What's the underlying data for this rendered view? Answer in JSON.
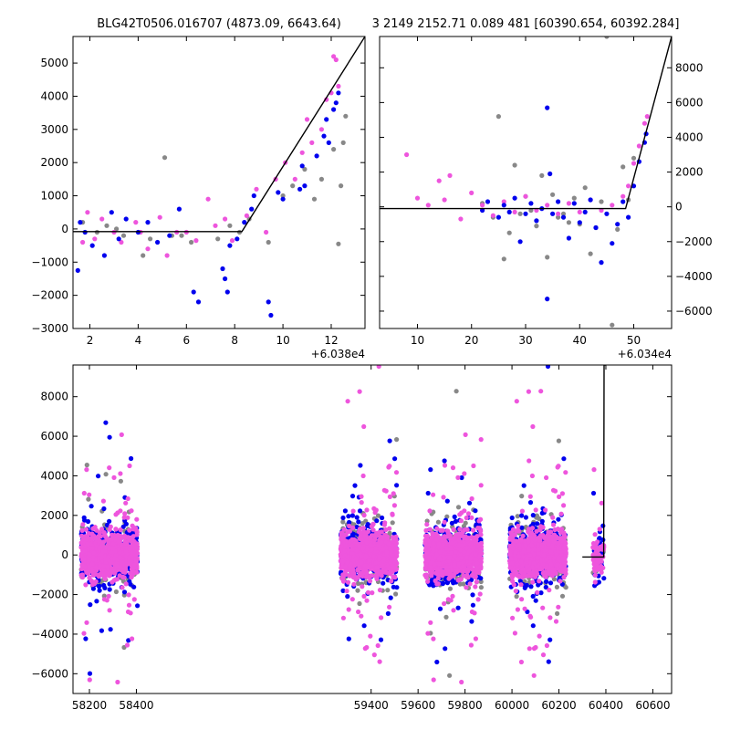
{
  "figure": {
    "title_left": "BLG42T0506.016707 (4873.09, 6643.64)",
    "title_right": "3 2149 2152.71 0.089 481 [60390.654, 60392.284]"
  },
  "colors": {
    "series_a": "#0000ee",
    "series_b": "#ee55dd",
    "series_c": "#888888",
    "model": "#000000"
  },
  "chart_data": [
    {
      "type": "scatter",
      "panel": "top-left",
      "x_offset_label": "+6.038e4",
      "xlim": [
        1.3,
        13.4
      ],
      "ylim": [
        -3000,
        5800
      ],
      "xticks": [
        2,
        4,
        6,
        8,
        10,
        12
      ],
      "yticks": [
        -3000,
        -2000,
        -1000,
        0,
        1000,
        2000,
        3000,
        4000,
        5000
      ],
      "ytick_side": "left",
      "model_line": {
        "x": [
          1.3,
          8.3,
          13.4
        ],
        "y": [
          -80,
          -80,
          5800
        ]
      },
      "series": [
        {
          "color": "#888888",
          "points": [
            [
              1.7,
              200
            ],
            [
              2.3,
              -100
            ],
            [
              2.7,
              100
            ],
            [
              3.1,
              0
            ],
            [
              3.4,
              -200
            ],
            [
              4.2,
              -800
            ],
            [
              4.5,
              -300
            ],
            [
              5.1,
              2150
            ],
            [
              5.4,
              -200
            ],
            [
              5.8,
              -200
            ],
            [
              6.2,
              -400
            ],
            [
              7.3,
              -300
            ],
            [
              7.8,
              100
            ],
            [
              8.2,
              -100
            ],
            [
              8.6,
              300
            ],
            [
              9.4,
              -400
            ],
            [
              10.0,
              1000
            ],
            [
              10.4,
              1300
            ],
            [
              10.9,
              1800
            ],
            [
              11.3,
              900
            ],
            [
              11.6,
              1500
            ],
            [
              12.1,
              2400
            ],
            [
              12.3,
              -450
            ],
            [
              12.4,
              1300
            ],
            [
              12.5,
              2600
            ],
            [
              12.6,
              3400
            ]
          ]
        },
        {
          "color": "#ee55dd",
          "points": [
            [
              1.7,
              -400
            ],
            [
              1.9,
              500
            ],
            [
              2.2,
              -300
            ],
            [
              2.5,
              300
            ],
            [
              3.0,
              -100
            ],
            [
              3.3,
              -400
            ],
            [
              3.9,
              200
            ],
            [
              4.1,
              -100
            ],
            [
              4.4,
              -600
            ],
            [
              4.9,
              350
            ],
            [
              5.2,
              -800
            ],
            [
              5.6,
              -100
            ],
            [
              6.0,
              -100
            ],
            [
              6.4,
              -350
            ],
            [
              6.9,
              900
            ],
            [
              7.2,
              100
            ],
            [
              7.6,
              300
            ],
            [
              7.9,
              -350
            ],
            [
              8.5,
              400
            ],
            [
              8.9,
              1200
            ],
            [
              9.3,
              -100
            ],
            [
              9.7,
              1500
            ],
            [
              10.1,
              2000
            ],
            [
              10.5,
              1500
            ],
            [
              10.8,
              2300
            ],
            [
              11.0,
              3300
            ],
            [
              11.2,
              2600
            ],
            [
              11.6,
              3000
            ],
            [
              11.8,
              3900
            ],
            [
              12.0,
              4100
            ],
            [
              12.1,
              5200
            ],
            [
              12.2,
              5100
            ],
            [
              12.3,
              4300
            ]
          ]
        },
        {
          "color": "#0000ee",
          "points": [
            [
              1.5,
              -1250
            ],
            [
              1.6,
              200
            ],
            [
              1.8,
              -100
            ],
            [
              2.1,
              -500
            ],
            [
              2.6,
              -800
            ],
            [
              2.9,
              500
            ],
            [
              3.2,
              -300
            ],
            [
              3.5,
              300
            ],
            [
              4.0,
              -100
            ],
            [
              4.4,
              200
            ],
            [
              4.8,
              -400
            ],
            [
              5.3,
              -200
            ],
            [
              5.7,
              600
            ],
            [
              6.3,
              -1900
            ],
            [
              6.5,
              -2200
            ],
            [
              7.5,
              -1200
            ],
            [
              7.6,
              -1500
            ],
            [
              7.7,
              -1900
            ],
            [
              7.8,
              -500
            ],
            [
              8.1,
              -300
            ],
            [
              8.4,
              200
            ],
            [
              8.7,
              600
            ],
            [
              8.8,
              1000
            ],
            [
              9.4,
              -2200
            ],
            [
              9.5,
              -2600
            ],
            [
              9.8,
              1100
            ],
            [
              10.0,
              900
            ],
            [
              10.7,
              1200
            ],
            [
              10.8,
              1900
            ],
            [
              10.9,
              1300
            ],
            [
              11.4,
              2200
            ],
            [
              11.7,
              2800
            ],
            [
              11.8,
              3300
            ],
            [
              11.9,
              2600
            ],
            [
              12.1,
              3600
            ],
            [
              12.2,
              3800
            ],
            [
              12.3,
              4100
            ]
          ]
        }
      ]
    },
    {
      "type": "scatter",
      "panel": "top-right",
      "x_offset_label": "+6.034e4",
      "xlim": [
        3,
        57
      ],
      "ylim": [
        -7000,
        9800
      ],
      "xticks": [
        10,
        20,
        30,
        40,
        50
      ],
      "yticks": [
        -6000,
        -4000,
        -2000,
        0,
        2000,
        4000,
        6000,
        8000
      ],
      "ytick_side": "right",
      "model_line": {
        "x": [
          3,
          48.5,
          57
        ],
        "y": [
          -100,
          -100,
          9800
        ]
      },
      "series": [
        {
          "color": "#888888",
          "points": [
            [
              22,
              200
            ],
            [
              24,
              -600
            ],
            [
              25,
              5200
            ],
            [
              26,
              -3000
            ],
            [
              27,
              -1500
            ],
            [
              28,
              2400
            ],
            [
              29,
              -400
            ],
            [
              30,
              600
            ],
            [
              31,
              -200
            ],
            [
              32,
              -1100
            ],
            [
              33,
              1800
            ],
            [
              34,
              -2900
            ],
            [
              35,
              700
            ],
            [
              36,
              -600
            ],
            [
              37,
              -400
            ],
            [
              38,
              -900
            ],
            [
              39,
              500
            ],
            [
              40,
              -1000
            ],
            [
              41,
              1100
            ],
            [
              42,
              -2700
            ],
            [
              43,
              -1200
            ],
            [
              44,
              300
            ],
            [
              45,
              9800
            ],
            [
              46,
              -6800
            ],
            [
              47,
              -1300
            ],
            [
              48,
              2300
            ],
            [
              49,
              400
            ],
            [
              50,
              2800
            ]
          ]
        },
        {
          "color": "#ee55dd",
          "points": [
            [
              8,
              3000
            ],
            [
              10,
              500
            ],
            [
              12,
              100
            ],
            [
              14,
              1500
            ],
            [
              15,
              400
            ],
            [
              16,
              1800
            ],
            [
              18,
              -700
            ],
            [
              20,
              800
            ],
            [
              22,
              100
            ],
            [
              24,
              -500
            ],
            [
              26,
              300
            ],
            [
              28,
              -300
            ],
            [
              30,
              600
            ],
            [
              32,
              -200
            ],
            [
              34,
              100
            ],
            [
              36,
              -400
            ],
            [
              38,
              200
            ],
            [
              40,
              -300
            ],
            [
              42,
              400
            ],
            [
              44,
              -200
            ],
            [
              46,
              100
            ],
            [
              48,
              600
            ],
            [
              49,
              1200
            ],
            [
              50,
              2500
            ],
            [
              51,
              3500
            ],
            [
              52,
              4800
            ],
            [
              52.5,
              5200
            ]
          ]
        },
        {
          "color": "#0000ee",
          "points": [
            [
              22,
              -200
            ],
            [
              23,
              300
            ],
            [
              25,
              -600
            ],
            [
              26,
              100
            ],
            [
              27,
              -300
            ],
            [
              28,
              500
            ],
            [
              29,
              -2000
            ],
            [
              30,
              -400
            ],
            [
              31,
              200
            ],
            [
              32,
              -800
            ],
            [
              33,
              -100
            ],
            [
              34,
              5700
            ],
            [
              34.5,
              1900
            ],
            [
              34,
              -5300
            ],
            [
              35,
              -400
            ],
            [
              36,
              300
            ],
            [
              37,
              -600
            ],
            [
              38,
              -1800
            ],
            [
              39,
              200
            ],
            [
              40,
              -900
            ],
            [
              41,
              -300
            ],
            [
              42,
              400
            ],
            [
              43,
              -1200
            ],
            [
              44,
              -3200
            ],
            [
              45,
              -400
            ],
            [
              46,
              -2100
            ],
            [
              47,
              -1000
            ],
            [
              48,
              300
            ],
            [
              49,
              -600
            ],
            [
              50,
              1200
            ],
            [
              51,
              2600
            ],
            [
              52,
              3700
            ],
            [
              52.3,
              4200
            ]
          ]
        }
      ]
    },
    {
      "type": "scatter",
      "panel": "bottom",
      "xlim": [
        58130,
        60680
      ],
      "ylim": [
        -7000,
        9600
      ],
      "xticks": [
        58200,
        58400,
        59400,
        59600,
        59800,
        60000,
        60200,
        60400,
        60600
      ],
      "yticks": [
        -6000,
        -4000,
        -2000,
        0,
        2000,
        4000,
        6000,
        8000
      ],
      "ytick_side": "left",
      "model_line": {
        "x": [
          60300,
          60390.654,
          60392.284,
          60400
        ],
        "y": [
          -100,
          -100,
          9600,
          9600
        ]
      },
      "seasons": [
        {
          "start": 58165,
          "end": 58405
        },
        {
          "start": 59270,
          "end": 59510
        },
        {
          "start": 59630,
          "end": 59870
        },
        {
          "start": 59990,
          "end": 60230
        },
        {
          "start": 60345,
          "end": 60392
        }
      ]
    }
  ]
}
